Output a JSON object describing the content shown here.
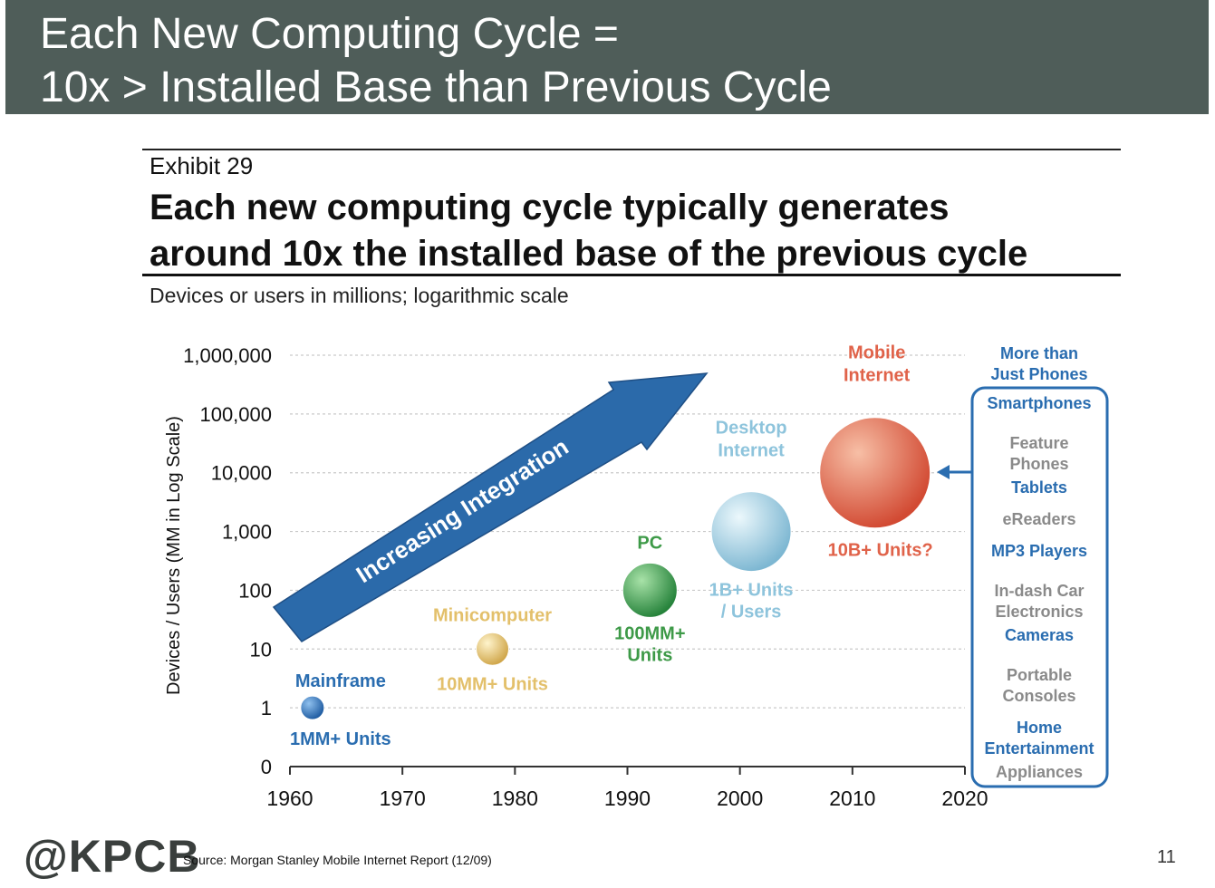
{
  "banner": {
    "title_line1": "Each New Computing Cycle =",
    "title_line2": "10x > Installed Base than Previous Cycle"
  },
  "exhibit": {
    "label": "Exhibit 29",
    "headline_line1": "Each new computing cycle typically generates",
    "headline_line2": "around 10x the installed base of the previous cycle",
    "subtitle": "Devices or users in millions; logarithmic scale"
  },
  "chart_data": {
    "type": "scatter",
    "ylabel": "Devices / Users (MM in Log Scale)",
    "y_scale": "log",
    "y_ticks": [
      "1,000,000",
      "100,000",
      "10,000",
      "1,000",
      "100",
      "10",
      "1",
      "0"
    ],
    "x_ticks": [
      "1960",
      "1970",
      "1980",
      "1990",
      "2000",
      "2010",
      "2020"
    ],
    "xlim": [
      1960,
      2020
    ],
    "grid": true,
    "arrow_label": "Increasing Integration",
    "points": [
      {
        "x": 1962,
        "y": 1,
        "name": "Mainframe",
        "value_label": "1MM+ Units",
        "color": "#2a6db0"
      },
      {
        "x": 1978,
        "y": 10,
        "name": "Minicomputer",
        "value_label": "10MM+ Units",
        "color": "#e3c06b"
      },
      {
        "x": 1992,
        "y": 100,
        "name": "PC",
        "value_label": "100MM+ Units",
        "color": "#3e9a48"
      },
      {
        "x": 2001,
        "y": 1000,
        "name": "Desktop Internet",
        "value_label": "1B+ Units / Users",
        "color": "#8ec4dc"
      },
      {
        "x": 2012,
        "y": 10000,
        "name": "Mobile Internet",
        "value_label": "10B+ Units?",
        "color": "#e0634a"
      }
    ],
    "side_panel": {
      "heading": "More than Just Phones",
      "items": [
        {
          "label": "Smartphones",
          "color": "#2a6db0"
        },
        {
          "label": "Feature Phones",
          "color": "#8a8a8a"
        },
        {
          "label": "Tablets",
          "color": "#2a6db0"
        },
        {
          "label": "eReaders",
          "color": "#8a8a8a"
        },
        {
          "label": "MP3 Players",
          "color": "#2a6db0"
        },
        {
          "label": "In-dash Car Electronics",
          "color": "#8a8a8a"
        },
        {
          "label": "Cameras",
          "color": "#2a6db0"
        },
        {
          "label": "Portable Consoles",
          "color": "#8a8a8a"
        },
        {
          "label": "Home Entertainment",
          "color": "#2a6db0"
        },
        {
          "label": "Appliances",
          "color": "#8a8a8a"
        }
      ]
    }
  },
  "footer": {
    "logo": "@KPCB",
    "source": "Source: Morgan Stanley Mobile Internet Report (12/09)",
    "page_number": "11"
  }
}
